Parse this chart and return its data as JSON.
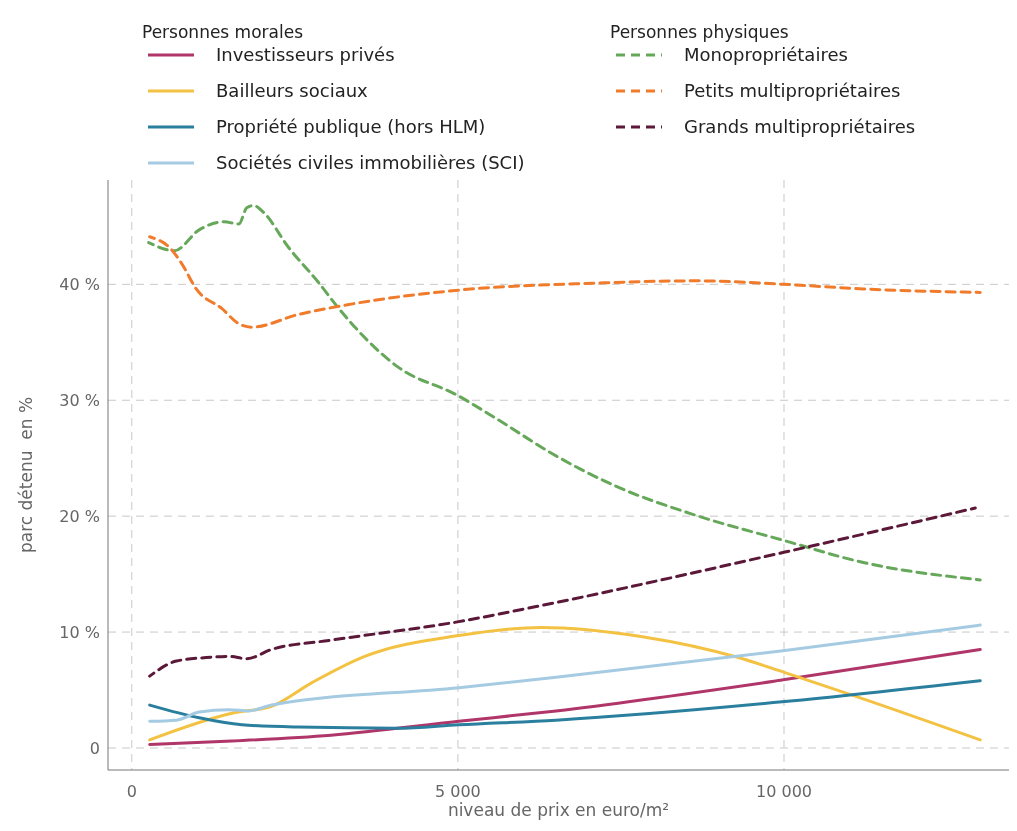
{
  "chart_data": {
    "type": "line",
    "xlabel": "niveau de prix en euro/m²",
    "ylabel": "parc détenu  en %",
    "legend_title": "Personnes morales",
    "annotations": [
      "Personnes physiques"
    ],
    "legend": "top",
    "grid": true,
    "xlim": [
      -365,
      13450
    ],
    "ylim": [
      -1.9,
      49
    ],
    "xticks": [
      0,
      {
        "value": 5000,
        "label": "5 000"
      },
      {
        "value": 10000,
        "label": "10 000"
      }
    ],
    "yticks": [
      0,
      {
        "value": 10,
        "label": "10 %"
      },
      {
        "value": 20,
        "label": "20 %"
      },
      {
        "value": 30,
        "label": "30 %"
      },
      {
        "value": 40,
        "label": "40 %"
      }
    ],
    "series": [
      {
        "name": "Investisseurs privés",
        "color": "#b03569",
        "line_style": "solid",
        "x": [
          274,
          1535,
          3055,
          5015,
          6505,
          10015,
          13009
        ],
        "values": [
          0.3,
          0.6,
          1.1,
          2.3,
          3.2,
          5.9,
          8.5
        ]
      },
      {
        "name": "Bailleurs sociaux",
        "color": "#f4c242",
        "line_style": "solid",
        "x": [
          274,
          1535,
          2143,
          2751,
          3571,
          5015,
          6277,
          7827,
          9301,
          10015,
          11079,
          13009
        ],
        "values": [
          0.7,
          3.0,
          3.6,
          5.6,
          7.9,
          9.7,
          10.4,
          9.6,
          7.8,
          6.5,
          4.5,
          0.7
        ]
      },
      {
        "name": "Propriété publique (hors HLM)",
        "color": "#2a7f9e",
        "line_style": "solid",
        "x": [
          274,
          1033,
          1687,
          2553,
          4073,
          5015,
          6505,
          10015,
          13009
        ],
        "values": [
          3.7,
          2.6,
          2.0,
          1.8,
          1.7,
          2.0,
          2.4,
          4.0,
          5.8
        ]
      },
      {
        "name": "Sociétés civiles immobilières (SCI)",
        "color": "#a5cbe3",
        "line_style": "solid",
        "x": [
          274,
          684,
          1033,
          1489,
          1793,
          2143,
          5015,
          6505,
          10015,
          13009
        ],
        "values": [
          2.3,
          2.4,
          3.1,
          3.3,
          3.2,
          3.7,
          5.2,
          6.1,
          8.4,
          10.6
        ]
      },
      {
        "name": "Monopropriétaires",
        "color": "#66a85a",
        "line_style": "dashed",
        "x": [
          258,
          654,
          1033,
          1413,
          1641,
          1763,
          1869,
          2021,
          2401,
          2857,
          3161,
          4073,
          5000,
          5593,
          6505,
          7416,
          8632,
          10000,
          11216,
          13009
        ],
        "values": [
          43.6,
          42.9,
          44.7,
          45.4,
          45.2,
          46.6,
          46.8,
          46.2,
          43.2,
          40.2,
          38.0,
          32.9,
          30.4,
          28.4,
          25.2,
          22.6,
          20.1,
          17.9,
          16.0,
          14.5
        ]
      },
      {
        "name": "Petits multipropriétaires",
        "color": "#f07b2b",
        "line_style": "dashed",
        "x": [
          274,
          608,
          775,
          988,
          1383,
          1641,
          1839,
          2553,
          3267,
          5015,
          7112,
          8632,
          10000,
          11216,
          13009
        ],
        "values": [
          44.1,
          43.0,
          41.7,
          39.6,
          37.9,
          36.6,
          36.3,
          37.4,
          38.2,
          39.5,
          40.1,
          40.3,
          40.0,
          39.6,
          39.3
        ]
      },
      {
        "name": "Grands multipropriétaires",
        "color": "#5c1838",
        "line_style": "dashed",
        "x": [
          274,
          684,
          1140,
          1489,
          1763,
          2143,
          3055,
          5015,
          6201,
          10015,
          12933
        ],
        "values": [
          6.2,
          7.5,
          7.8,
          7.9,
          7.7,
          8.5,
          9.3,
          10.9,
          12.2,
          16.9,
          20.7
        ]
      }
    ]
  }
}
